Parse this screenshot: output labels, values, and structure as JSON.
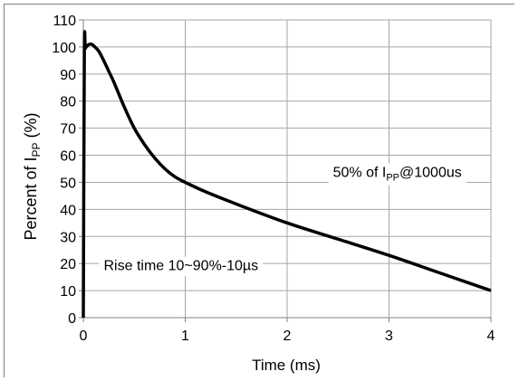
{
  "chart_data": {
    "type": "line",
    "xlabel": "Time (ms)",
    "ylabel_prefix": "Percent of I",
    "ylabel_sub": "PP",
    "ylabel_suffix": " (%)",
    "xlim": [
      0,
      4
    ],
    "ylim": [
      0,
      110
    ],
    "x_ticks": [
      0,
      1,
      2,
      3,
      4
    ],
    "y_ticks": [
      0,
      10,
      20,
      30,
      40,
      50,
      60,
      70,
      80,
      90,
      100,
      110
    ],
    "grid": true,
    "legend": "none",
    "colors": {
      "line": "#000000",
      "grid": "#a6a6a6",
      "axis": "#808080"
    },
    "series": [
      {
        "x": [
          0,
          0.01,
          0.02,
          0.04,
          0.06,
          0.08,
          0.1,
          0.15,
          0.2,
          0.25,
          0.3,
          0.4,
          0.5,
          0.6,
          0.7,
          0.8,
          0.9,
          1.0,
          1.2,
          1.5,
          2.0,
          2.5,
          3.0,
          3.5,
          4.0
        ],
        "y": [
          0,
          98,
          99.5,
          100.5,
          101,
          101,
          100.5,
          98.5,
          95,
          91,
          87,
          78,
          70,
          64,
          59,
          55,
          52,
          50,
          46.5,
          42,
          35,
          29,
          23,
          16.5,
          10
        ]
      }
    ],
    "annotations": [
      {
        "text_main": "50% of I",
        "text_sub": "PP",
        "text_tail": "@1000us",
        "x": 2.45,
        "y": 52
      },
      {
        "text_main": "Rise time 10~90%-10",
        "text_sub": "",
        "text_tail": "µs",
        "x": 0.2,
        "y": 17.5
      }
    ]
  }
}
